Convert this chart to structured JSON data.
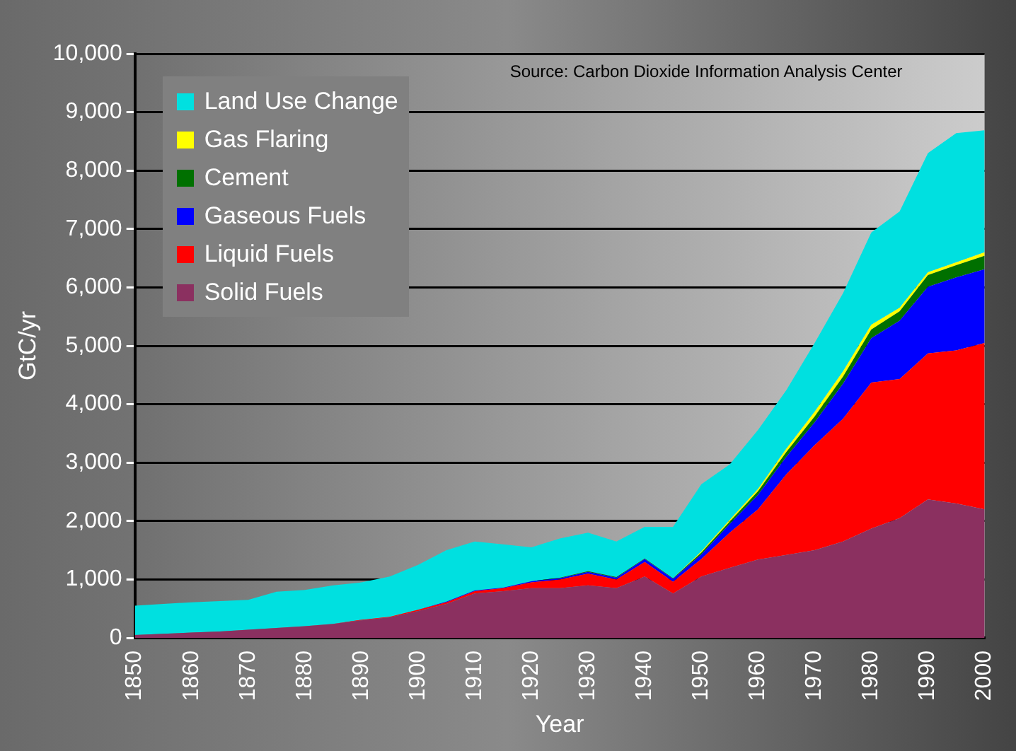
{
  "chart_data": {
    "type": "area",
    "stacked": true,
    "annotations": [
      "Source: Carbon Dioxide Information Analysis Center"
    ],
    "xlabel": "Year",
    "ylabel": "GtC/yr",
    "x": [
      1850,
      1855,
      1860,
      1865,
      1870,
      1875,
      1880,
      1885,
      1890,
      1895,
      1900,
      1905,
      1910,
      1915,
      1920,
      1925,
      1930,
      1935,
      1940,
      1945,
      1950,
      1955,
      1960,
      1965,
      1970,
      1975,
      1980,
      1985,
      1990,
      1995,
      2000
    ],
    "series": [
      {
        "name": "Solid Fuels",
        "color": "#8b3060",
        "values": [
          50,
          70,
          90,
          110,
          140,
          170,
          200,
          240,
          300,
          350,
          460,
          580,
          760,
          800,
          850,
          850,
          900,
          850,
          1050,
          760,
          1050,
          1200,
          1340,
          1420,
          1500,
          1650,
          1870,
          2050,
          2370,
          2300,
          2200
        ]
      },
      {
        "name": "Liquid Fuels",
        "color": "#ff0000",
        "values": [
          0,
          0,
          0,
          0,
          0,
          0,
          0,
          0,
          10,
          10,
          20,
          30,
          40,
          50,
          100,
          150,
          200,
          150,
          250,
          200,
          300,
          600,
          860,
          1380,
          1800,
          2100,
          2500,
          2380,
          2500,
          2620,
          2850
        ]
      },
      {
        "name": "Gaseous Fuels",
        "color": "#0000ff",
        "values": [
          0,
          0,
          0,
          0,
          0,
          0,
          0,
          0,
          0,
          0,
          0,
          10,
          10,
          10,
          20,
          20,
          30,
          30,
          50,
          50,
          80,
          150,
          250,
          300,
          390,
          600,
          760,
          1000,
          1140,
          1250,
          1260
        ]
      },
      {
        "name": "Cement",
        "color": "#007000",
        "values": [
          0,
          0,
          0,
          0,
          0,
          0,
          0,
          0,
          0,
          0,
          0,
          0,
          0,
          0,
          0,
          10,
          10,
          10,
          10,
          10,
          30,
          40,
          60,
          80,
          100,
          120,
          150,
          160,
          200,
          210,
          230
        ]
      },
      {
        "name": "Gas Flaring",
        "color": "#ffff00",
        "values": [
          0,
          0,
          0,
          0,
          0,
          0,
          0,
          0,
          0,
          0,
          0,
          0,
          0,
          0,
          0,
          0,
          0,
          0,
          0,
          0,
          20,
          30,
          40,
          60,
          80,
          90,
          80,
          60,
          50,
          50,
          60
        ]
      },
      {
        "name": "Land Use Change",
        "color": "#00e0e0",
        "values": [
          500,
          510,
          520,
          520,
          510,
          620,
          620,
          660,
          640,
          690,
          770,
          880,
          840,
          740,
          580,
          670,
          660,
          610,
          540,
          880,
          1150,
          950,
          1010,
          1000,
          1180,
          1340,
          1580,
          1650,
          2040,
          2210,
          2090
        ]
      }
    ],
    "xlim": [
      1850,
      2000
    ],
    "xticks": [
      1850,
      1860,
      1870,
      1880,
      1890,
      1900,
      1910,
      1920,
      1930,
      1940,
      1950,
      1960,
      1970,
      1980,
      1990,
      2000
    ],
    "ylim": [
      0,
      10000
    ],
    "yticks": [
      0,
      {
        "value": 1000,
        "label": "1,000"
      },
      {
        "value": 2000,
        "label": "2,000"
      },
      {
        "value": 3000,
        "label": "3,000"
      },
      {
        "value": 4000,
        "label": "4,000"
      },
      {
        "value": 5000,
        "label": "5,000"
      },
      {
        "value": 6000,
        "label": "6,000"
      },
      {
        "value": 7000,
        "label": "7,000"
      },
      {
        "value": 8000,
        "label": "8,000"
      },
      {
        "value": 9000,
        "label": "9,000"
      },
      {
        "value": 10000,
        "label": "10,000"
      }
    ],
    "grid": "y",
    "legend": "top left"
  }
}
